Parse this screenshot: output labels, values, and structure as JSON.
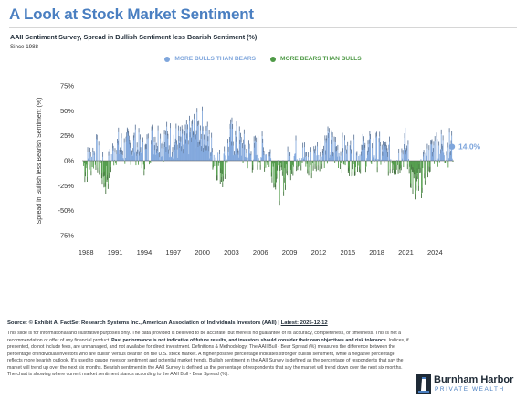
{
  "page": {
    "title": "A Look at Stock Market Sentiment",
    "subtitle": "AAII Sentiment Survey, Spread in Bullish Sentiment less Bearish Sentiment (%)",
    "since": "Since 1988"
  },
  "legend": {
    "bulls_label": "MORE BULLS THAN BEARS",
    "bears_label": "MORE BEARS THAN BULLS"
  },
  "colors": {
    "title": "#4a7fc1",
    "bulls": "#7fa6dc",
    "bears": "#4f9a47",
    "bulls_legend": "#7fa6dc",
    "bears_legend": "#4f9a47"
  },
  "chart_data": {
    "type": "area",
    "title": "AAII Sentiment Survey, Spread in Bullish Sentiment less Bearish Sentiment (%)",
    "ylabel": "Spread in Bullish less Bearish Sentiment (%)",
    "xlabel": "",
    "ylim": [
      -75,
      75
    ],
    "yticks": [
      75,
      50,
      25,
      0,
      -25,
      -50,
      -75
    ],
    "ytick_labels": [
      "75%",
      "50%",
      "25%",
      "0%",
      "-25%",
      "-50%",
      "-75%"
    ],
    "xlim": [
      1987.6,
      2025.95
    ],
    "xticks": [
      1988,
      1991,
      1994,
      1997,
      2000,
      2003,
      2006,
      2009,
      2012,
      2015,
      2018,
      2021,
      2024
    ],
    "xtick_labels": [
      "1988",
      "1991",
      "1994",
      "1997",
      "2000",
      "2003",
      "2006",
      "2009",
      "2012",
      "2015",
      "2018",
      "2021",
      "2024"
    ],
    "grid": false,
    "legend_position": "top-center",
    "last_value_label": "14.0%",
    "last_value": 14.0,
    "series": [
      {
        "name": "Bull-Bear Spread",
        "x": [
          1988,
          1989,
          1990,
          1991,
          1992,
          1993,
          1994,
          1995,
          1996,
          1997,
          1998,
          1999,
          2000,
          2001,
          2002,
          2003,
          2004,
          2005,
          2006,
          2007,
          2008,
          2009,
          2010,
          2011,
          2012,
          2013,
          2014,
          2015,
          2016,
          2017,
          2018,
          2019,
          2020,
          2021,
          2022,
          2023,
          2024,
          2025
        ],
        "y": [
          -5,
          10,
          -20,
          15,
          12,
          18,
          5,
          25,
          20,
          22,
          15,
          30,
          35,
          10,
          -10,
          25,
          15,
          5,
          10,
          5,
          -25,
          0,
          10,
          -5,
          10,
          15,
          10,
          5,
          5,
          10,
          10,
          5,
          0,
          15,
          -35,
          -5,
          15,
          14
        ]
      }
    ]
  },
  "source": {
    "text": "Source: © Exhibit A, FactSet Research Systems Inc., American Association of Individuals Investors (AAII) | ",
    "latest": "Latest: 2025-12-12"
  },
  "disclaimer": {
    "part1": "This slide is for informational and illustrative purposes only. The data provided is believed to be accurate, but there is no guarantee of its accuracy, completeness, or timeliness. This is not a recommendation or offer of any financial product. ",
    "bold": "Past performance is not indicative of future results, and investors should consider their own objectives and risk tolerance.",
    "part2": " Indices, if presented, do not include fees, are unmanaged, and not available for direct investment. Definitions & Methodology: The AAII Bull - Bear Spread (%) measures the difference between the percentage of individual investors who are bullish versus bearish on the U.S. stock market. A higher positive percentage indicates stronger bullish sentiment, while a negative percentage reflects more bearish outlook. It's used to gauge investor sentiment and potential market trends. Bullish sentiment in the AAII Survey is defined as the percentage of respondents that say the market will trend up over the next six months. Bearish sentiment in the AAII Survey is defined as the percentage of respondents that say the market will trend down over the next six months. The chart is showing where current market sentiment stands according to the AAII Bull - Bear Spread (%)."
  },
  "logo": {
    "name": "Burnham Harbor",
    "tagline": "PRIVATE WEALTH"
  }
}
